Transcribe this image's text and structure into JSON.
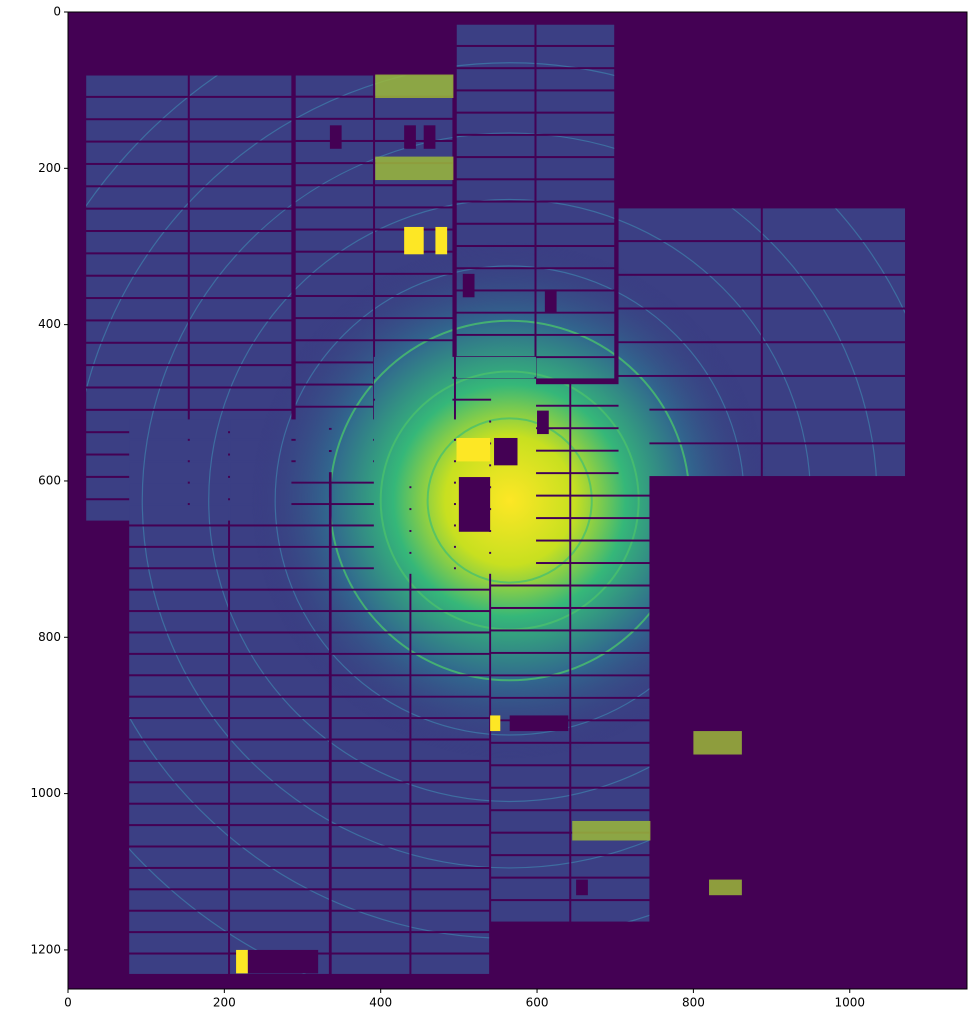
{
  "chart_data": {
    "type": "image",
    "xlim": [
      0,
      1150
    ],
    "ylim": [
      1250,
      0
    ],
    "xticks": [
      0,
      200,
      400,
      600,
      800,
      1000
    ],
    "yticks": [
      0,
      200,
      400,
      600,
      800,
      1000,
      1200
    ],
    "colormap": "viridis"
  }
}
